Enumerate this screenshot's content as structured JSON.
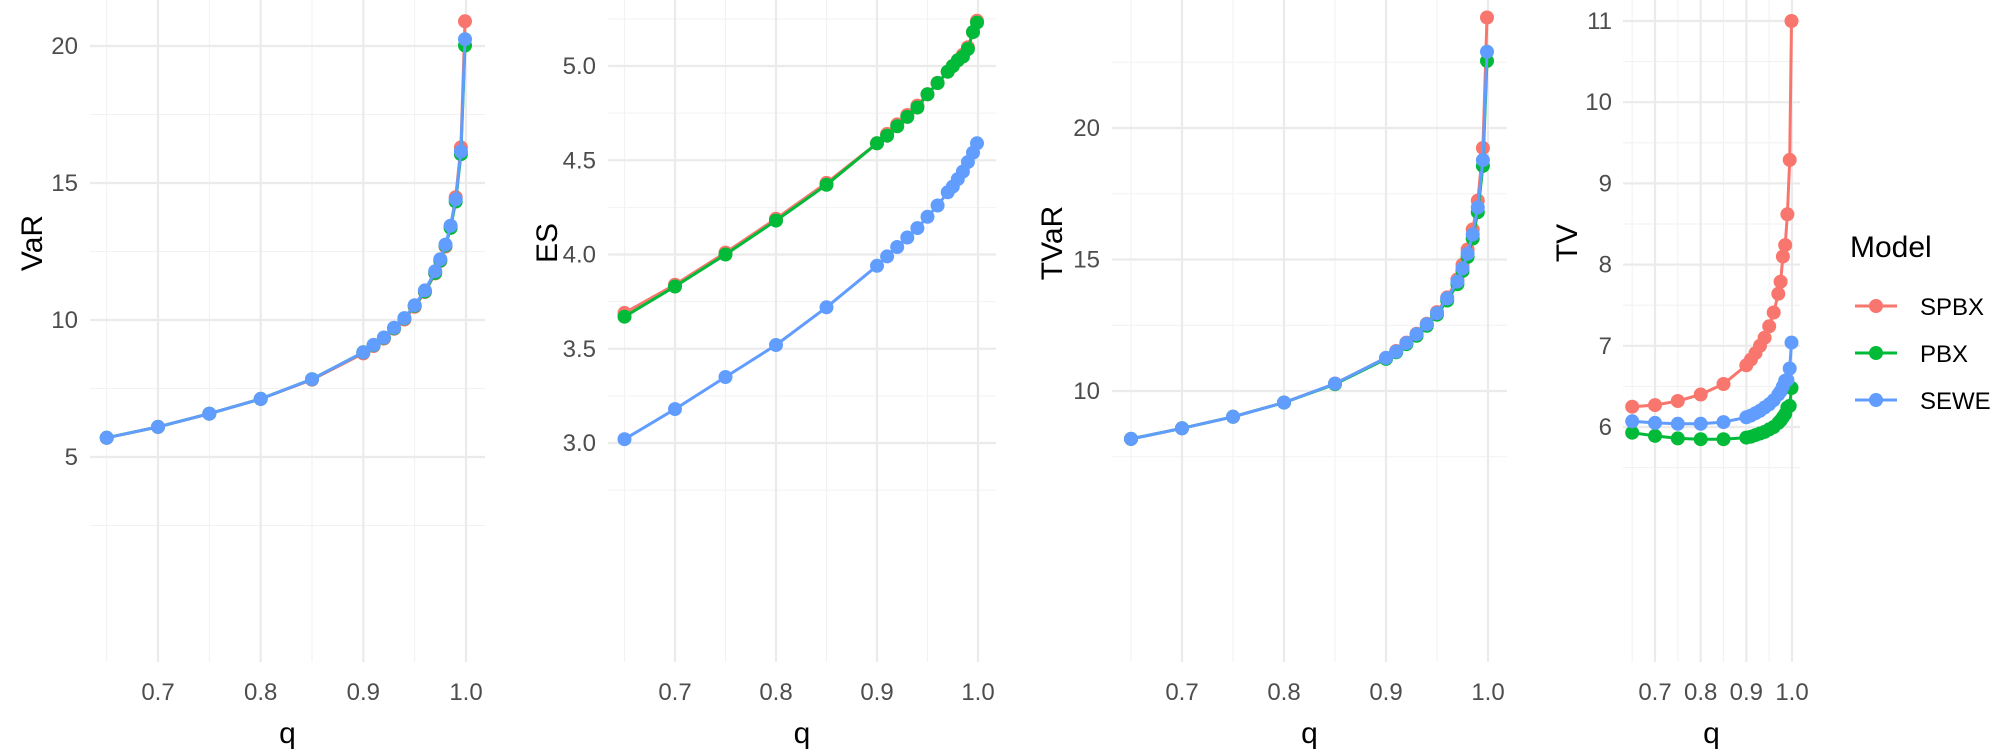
{
  "chart_data": {
    "type": "line",
    "layout": "4 facet panels side by side, shared legend on right",
    "legend": {
      "title": "Model",
      "position": "right",
      "entries": [
        {
          "name": "SPBX",
          "color": "#F8766D"
        },
        {
          "name": "PBX",
          "color": "#00BA38"
        },
        {
          "name": "SEWE",
          "color": "#619CFF"
        }
      ]
    },
    "x": [
      0.65,
      0.7,
      0.75,
      0.8,
      0.85,
      0.9,
      0.91,
      0.92,
      0.93,
      0.94,
      0.95,
      0.96,
      0.97,
      0.975,
      0.98,
      0.985,
      0.99,
      0.995,
      0.999
    ],
    "panels": [
      {
        "id": "var",
        "title": "",
        "xlabel": "q",
        "ylabel": "VaR",
        "xticks": [
          0.7,
          0.8,
          0.9,
          1.0
        ],
        "xtick_labels": [
          "0.7",
          "0.8",
          "0.9",
          "1.0"
        ],
        "yticks": [
          5,
          10,
          15,
          20
        ],
        "ytick_labels": [
          "5",
          "10",
          "15",
          "20"
        ],
        "ylim": [
          4.7,
          21.6
        ],
        "grid": true,
        "series": [
          {
            "name": "SPBX",
            "values": [
              5.7,
              6.1,
              6.58,
              7.12,
              7.82,
              8.78,
              9.05,
              9.32,
              9.68,
              10.02,
              10.48,
              11.02,
              11.7,
              12.15,
              12.68,
              13.4,
              14.48,
              16.3,
              20.9
            ]
          },
          {
            "name": "PBX",
            "values": [
              5.7,
              6.1,
              6.58,
              7.12,
              7.84,
              8.82,
              9.08,
              9.35,
              9.7,
              10.06,
              10.52,
              11.04,
              11.72,
              12.17,
              12.72,
              13.36,
              14.32,
              16.05,
              20.02
            ]
          },
          {
            "name": "SEWE",
            "values": [
              5.7,
              6.1,
              6.58,
              7.12,
              7.84,
              8.82,
              9.09,
              9.36,
              9.72,
              10.07,
              10.54,
              11.08,
              11.78,
              12.22,
              12.75,
              13.44,
              14.4,
              16.15,
              20.25
            ]
          }
        ]
      },
      {
        "id": "es",
        "title": "",
        "xlabel": "q",
        "ylabel": "ES",
        "xticks": [
          0.7,
          0.8,
          0.9,
          1.0
        ],
        "xtick_labels": [
          "0.7",
          "0.8",
          "0.9",
          "1.0"
        ],
        "yticks": [
          3.0,
          3.5,
          4.0,
          4.5,
          5.0
        ],
        "ytick_labels": [
          "3.0",
          "3.5",
          "4.0",
          "4.5",
          "5.0"
        ],
        "ylim": [
          2.93,
          5.3
        ],
        "grid": true,
        "series": [
          {
            "name": "SPBX",
            "values": [
              3.69,
              3.84,
              4.01,
              4.19,
              4.38,
              4.59,
              4.64,
              4.69,
              4.74,
              4.79,
              4.85,
              4.91,
              4.97,
              5.0,
              5.03,
              5.06,
              5.1,
              5.18,
              5.24
            ]
          },
          {
            "name": "PBX",
            "values": [
              3.67,
              3.83,
              4.0,
              4.18,
              4.37,
              4.59,
              4.63,
              4.68,
              4.73,
              4.78,
              4.85,
              4.91,
              4.97,
              5.0,
              5.03,
              5.05,
              5.09,
              5.18,
              5.23
            ]
          },
          {
            "name": "SEWE",
            "values": [
              3.02,
              3.18,
              3.35,
              3.52,
              3.72,
              3.94,
              3.99,
              4.04,
              4.09,
              4.14,
              4.2,
              4.26,
              4.33,
              4.36,
              4.4,
              4.44,
              4.49,
              4.54,
              4.59
            ]
          }
        ]
      },
      {
        "id": "tvar",
        "title": "",
        "xlabel": "q",
        "ylabel": "TVaR",
        "xticks": [
          0.7,
          0.8,
          0.9,
          1.0
        ],
        "xtick_labels": [
          "0.7",
          "0.8",
          "0.9",
          "1.0"
        ],
        "yticks": [
          10,
          15,
          20
        ],
        "ytick_labels": [
          "10",
          "15",
          "20"
        ],
        "ylim": [
          7.5,
          24.9
        ],
        "grid": true,
        "series": [
          {
            "name": "SPBX",
            "values": [
              8.18,
              8.58,
              9.02,
              9.56,
              10.28,
              11.26,
              11.52,
              11.84,
              12.18,
              12.56,
              13.0,
              13.56,
              14.24,
              14.8,
              15.38,
              16.14,
              17.24,
              19.24,
              24.2
            ]
          },
          {
            "name": "PBX",
            "values": [
              8.18,
              8.58,
              9.02,
              9.56,
              10.26,
              11.22,
              11.47,
              11.78,
              12.1,
              12.48,
              12.9,
              13.44,
              14.06,
              14.56,
              15.1,
              15.8,
              16.8,
              18.56,
              22.55
            ]
          },
          {
            "name": "SEWE",
            "values": [
              8.18,
              8.58,
              9.02,
              9.56,
              10.28,
              11.26,
              11.5,
              11.82,
              12.16,
              12.54,
              12.96,
              13.52,
              14.16,
              14.66,
              15.22,
              15.95,
              16.98,
              18.78,
              22.9
            ]
          }
        ]
      },
      {
        "id": "tv",
        "title": "",
        "xlabel": "q",
        "ylabel": "TV",
        "xticks": [
          0.7,
          0.8,
          0.9,
          1.0
        ],
        "xtick_labels": [
          "0.7",
          "0.8",
          "0.9",
          "1.0"
        ],
        "yticks": [
          6,
          7,
          8,
          9,
          10,
          11
        ],
        "ytick_labels": [
          "6",
          "7",
          "8",
          "9",
          "10",
          "11"
        ],
        "ylim": [
          5.6,
          11.2
        ],
        "grid": true,
        "series": [
          {
            "name": "SPBX",
            "values": [
              6.25,
              6.27,
              6.32,
              6.4,
              6.53,
              6.76,
              6.83,
              6.91,
              7.0,
              7.1,
              7.24,
              7.41,
              7.64,
              7.79,
              8.1,
              8.24,
              8.62,
              9.29,
              11.0
            ]
          },
          {
            "name": "PBX",
            "values": [
              5.93,
              5.89,
              5.86,
              5.85,
              5.85,
              5.87,
              5.88,
              5.9,
              5.92,
              5.94,
              5.97,
              6.0,
              6.05,
              6.08,
              6.12,
              6.16,
              6.24,
              6.26,
              6.48
            ]
          },
          {
            "name": "SEWE",
            "values": [
              6.07,
              6.05,
              6.04,
              6.04,
              6.06,
              6.12,
              6.14,
              6.17,
              6.2,
              6.24,
              6.28,
              6.33,
              6.4,
              6.44,
              6.5,
              6.57,
              6.58,
              6.72,
              7.04
            ]
          }
        ]
      }
    ]
  }
}
